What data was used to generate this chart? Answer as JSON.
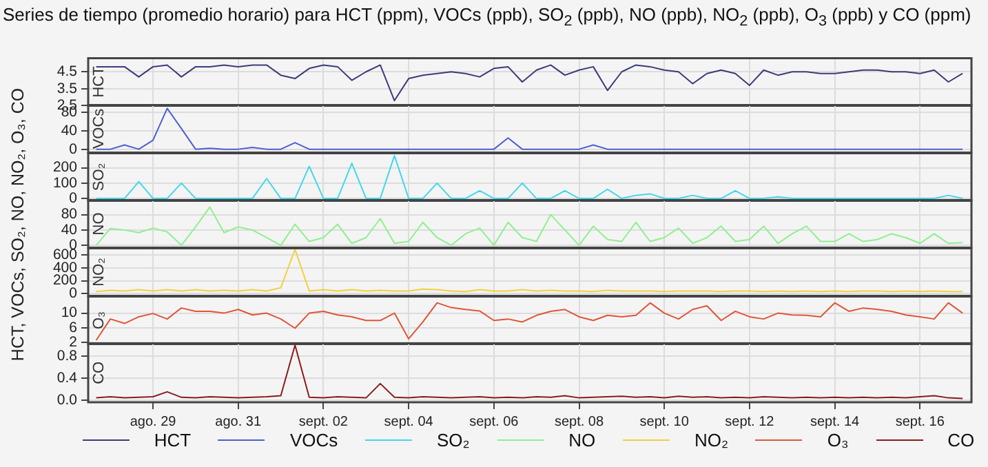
{
  "chart_data": [
    {
      "type": "line",
      "title": "Series de tiempo (promedio horario) para HCT (ppm), VOCs (ppb), SO$_{2}$ (ppb), NO (ppb), NO$_{2}$ (ppb), O$_{3}$ (ppb) y CO (ppm)",
      "ylabel": "HCT, VOCs, SO₂, NO, NO₂, O₃, CO",
      "grid": true,
      "legend": "bottom",
      "tick_labels": "y",
      "x": [
        "--08-27T16:00",
        "--08-28T00:00",
        "--08-28T08:00",
        "--08-28T16:00",
        "--08-29T00:00",
        "--08-29T08:00",
        "--08-29T16:00",
        "--08-30T00:00",
        "--08-30T08:00",
        "--08-30T16:00",
        "--08-31T00:00",
        "--08-31T08:00",
        "--08-31T16:00",
        "--09-01T00:00",
        "--09-01T08:00",
        "--09-01T16:00",
        "--09-02T00:00",
        "--09-02T08:00",
        "--09-02T16:00",
        "--09-03T00:00",
        "--09-03T08:00",
        "--09-03T16:00",
        "--09-04T00:00",
        "--09-04T08:00",
        "--09-04T16:00",
        "--09-05T00:00",
        "--09-05T08:00",
        "--09-05T16:00",
        "--09-06T00:00",
        "--09-06T08:00",
        "--09-06T16:00",
        "--09-07T00:00",
        "--09-07T08:00",
        "--09-07T16:00",
        "--09-08T00:00",
        "--09-08T08:00",
        "--09-08T16:00",
        "--09-09T00:00",
        "--09-09T08:00",
        "--09-09T16:00",
        "--09-10T00:00",
        "--09-10T08:00",
        "--09-10T16:00",
        "--09-11T00:00",
        "--09-11T08:00",
        "--09-11T16:00",
        "--09-12T00:00",
        "--09-12T08:00",
        "--09-12T16:00",
        "--09-13T00:00",
        "--09-13T08:00",
        "--09-13T16:00",
        "--09-14T00:00",
        "--09-14T08:00",
        "--09-14T16:00",
        "--09-15T00:00",
        "--09-15T08:00",
        "--09-15T16:00",
        "--09-16T00:00",
        "--09-16T08:00",
        "--09-16T16:00",
        "--09-17T00:00"
      ],
      "xlim": [
        "--08-27T11:30",
        "--09-17T05:00"
      ],
      "xticks": [
        {
          "value": "--08-29",
          "label": null
        },
        {
          "value": "--08-31",
          "label": null
        },
        {
          "value": "--09-02",
          "label": null
        },
        {
          "value": "--09-04",
          "label": null
        },
        {
          "value": "--09-06",
          "label": null
        },
        {
          "value": "--09-08",
          "label": null
        },
        {
          "value": "--09-10",
          "label": null
        },
        {
          "value": "--09-12",
          "label": null
        },
        {
          "value": "--09-14",
          "label": null
        },
        {
          "value": "--09-16",
          "label": null
        }
      ],
      "ylim": [
        2.5,
        5.3
      ],
      "yticks": [
        2.5,
        3.5,
        4.5
      ],
      "series": [
        {
          "name": "HCT",
          "color": "#3b3b7a",
          "values": [
            4.8,
            4.8,
            4.8,
            4.2,
            4.8,
            4.9,
            4.2,
            4.8,
            4.8,
            4.9,
            4.8,
            4.9,
            4.9,
            4.3,
            4.1,
            4.7,
            4.9,
            4.8,
            4.0,
            4.5,
            4.9,
            2.8,
            4.1,
            4.3,
            4.4,
            4.5,
            4.4,
            4.2,
            4.7,
            4.8,
            3.9,
            4.6,
            4.9,
            4.3,
            4.6,
            4.8,
            3.4,
            4.5,
            4.9,
            4.8,
            4.6,
            4.5,
            3.8,
            4.4,
            4.6,
            4.4,
            3.7,
            4.6,
            4.3,
            4.5,
            4.5,
            4.4,
            4.4,
            4.5,
            4.6,
            4.6,
            4.5,
            4.5,
            4.4,
            4.6,
            3.9,
            4.4
          ]
        }
      ]
    },
    {
      "type": "line",
      "grid": true,
      "legend": "bottom",
      "tick_labels": "y",
      "x": [
        "--08-27T16:00",
        "--08-28T00:00",
        "--08-28T08:00",
        "--08-28T16:00",
        "--08-29T00:00",
        "--08-29T08:00",
        "--08-29T16:00",
        "--08-30T00:00",
        "--08-30T08:00",
        "--08-30T16:00",
        "--08-31T00:00",
        "--08-31T08:00",
        "--08-31T16:00",
        "--09-01T00:00",
        "--09-01T08:00",
        "--09-01T16:00",
        "--09-02T00:00",
        "--09-02T08:00",
        "--09-02T16:00",
        "--09-03T00:00",
        "--09-03T08:00",
        "--09-03T16:00",
        "--09-04T00:00",
        "--09-04T08:00",
        "--09-04T16:00",
        "--09-05T00:00",
        "--09-05T08:00",
        "--09-05T16:00",
        "--09-06T00:00",
        "--09-06T08:00",
        "--09-06T16:00",
        "--09-07T00:00",
        "--09-07T08:00",
        "--09-07T16:00",
        "--09-08T00:00",
        "--09-08T08:00",
        "--09-08T16:00",
        "--09-09T00:00",
        "--09-09T08:00",
        "--09-09T16:00",
        "--09-10T00:00",
        "--09-10T08:00",
        "--09-10T16:00",
        "--09-11T00:00",
        "--09-11T08:00",
        "--09-11T16:00",
        "--09-12T00:00",
        "--09-12T08:00",
        "--09-12T16:00",
        "--09-13T00:00",
        "--09-13T08:00",
        "--09-13T16:00",
        "--09-14T00:00",
        "--09-14T08:00",
        "--09-14T16:00",
        "--09-15T00:00",
        "--09-15T08:00",
        "--09-15T16:00",
        "--09-16T00:00",
        "--09-16T08:00",
        "--09-16T16:00",
        "--09-17T00:00"
      ],
      "xlim": [
        "--08-27T11:30",
        "--09-17T05:00"
      ],
      "xticks": [
        {
          "value": "--08-29",
          "label": null
        },
        {
          "value": "--08-31",
          "label": null
        },
        {
          "value": "--09-02",
          "label": null
        },
        {
          "value": "--09-04",
          "label": null
        },
        {
          "value": "--09-06",
          "label": null
        },
        {
          "value": "--09-08",
          "label": null
        },
        {
          "value": "--09-10",
          "label": null
        },
        {
          "value": "--09-12",
          "label": null
        },
        {
          "value": "--09-14",
          "label": null
        },
        {
          "value": "--09-16",
          "label": null
        }
      ],
      "ylim": [
        -6,
        95
      ],
      "yticks": [
        0,
        40,
        80
      ],
      "series": [
        {
          "name": "VOCs",
          "color": "#4c5fd0",
          "values": [
            1,
            1,
            10,
            1,
            20,
            88,
            45,
            1,
            3,
            1,
            1,
            5,
            1,
            1,
            15,
            1,
            1,
            1,
            1,
            1,
            1,
            1,
            1,
            1,
            1,
            1,
            1,
            1,
            1,
            25,
            1,
            1,
            1,
            1,
            1,
            10,
            1,
            1,
            1,
            1,
            1,
            1,
            1,
            1,
            1,
            1,
            1,
            1,
            1,
            1,
            1,
            1,
            1,
            1,
            1,
            1,
            1,
            1,
            1,
            1,
            1,
            1
          ]
        }
      ]
    },
    {
      "type": "line",
      "grid": true,
      "legend": "bottom",
      "tick_labels": "y",
      "x": [
        "--08-27T16:00",
        "--08-28T00:00",
        "--08-28T08:00",
        "--08-28T16:00",
        "--08-29T00:00",
        "--08-29T08:00",
        "--08-29T16:00",
        "--08-30T00:00",
        "--08-30T08:00",
        "--08-30T16:00",
        "--08-31T00:00",
        "--08-31T08:00",
        "--08-31T16:00",
        "--09-01T00:00",
        "--09-01T08:00",
        "--09-01T16:00",
        "--09-02T00:00",
        "--09-02T08:00",
        "--09-02T16:00",
        "--09-03T00:00",
        "--09-03T08:00",
        "--09-03T16:00",
        "--09-04T00:00",
        "--09-04T08:00",
        "--09-04T16:00",
        "--09-05T00:00",
        "--09-05T08:00",
        "--09-05T16:00",
        "--09-06T00:00",
        "--09-06T08:00",
        "--09-06T16:00",
        "--09-07T00:00",
        "--09-07T08:00",
        "--09-07T16:00",
        "--09-08T00:00",
        "--09-08T08:00",
        "--09-08T16:00",
        "--09-09T00:00",
        "--09-09T08:00",
        "--09-09T16:00",
        "--09-10T00:00",
        "--09-10T08:00",
        "--09-10T16:00",
        "--09-11T00:00",
        "--09-11T08:00",
        "--09-11T16:00",
        "--09-12T00:00",
        "--09-12T08:00",
        "--09-12T16:00",
        "--09-13T00:00",
        "--09-13T08:00",
        "--09-13T16:00",
        "--09-14T00:00",
        "--09-14T08:00",
        "--09-14T16:00",
        "--09-15T00:00",
        "--09-15T08:00",
        "--09-15T16:00",
        "--09-16T00:00",
        "--09-16T08:00",
        "--09-16T16:00",
        "--09-17T00:00"
      ],
      "xlim": [
        "--08-27T11:30",
        "--09-17T05:00"
      ],
      "xticks": [
        {
          "value": "--08-29",
          "label": null
        },
        {
          "value": "--08-31",
          "label": null
        },
        {
          "value": "--09-02",
          "label": null
        },
        {
          "value": "--09-04",
          "label": null
        },
        {
          "value": "--09-06",
          "label": null
        },
        {
          "value": "--09-08",
          "label": null
        },
        {
          "value": "--09-10",
          "label": null
        },
        {
          "value": "--09-12",
          "label": null
        },
        {
          "value": "--09-14",
          "label": null
        },
        {
          "value": "--09-16",
          "label": null
        }
      ],
      "ylim": [
        -15,
        295
      ],
      "yticks": [
        0,
        100,
        200
      ],
      "series": [
        {
          "name": "SO₂",
          "color": "#40d8ec",
          "values": [
            0,
            0,
            0,
            110,
            0,
            0,
            100,
            0,
            0,
            0,
            0,
            0,
            130,
            0,
            0,
            210,
            0,
            0,
            230,
            0,
            0,
            280,
            0,
            0,
            100,
            0,
            0,
            50,
            0,
            0,
            100,
            0,
            0,
            50,
            0,
            0,
            60,
            0,
            20,
            30,
            0,
            0,
            20,
            0,
            0,
            50,
            0,
            0,
            10,
            0,
            0,
            0,
            0,
            0,
            0,
            0,
            0,
            0,
            0,
            0,
            20,
            0
          ]
        }
      ]
    },
    {
      "type": "line",
      "grid": true,
      "legend": "bottom",
      "tick_labels": "y",
      "x": [
        "--08-27T16:00",
        "--08-28T00:00",
        "--08-28T08:00",
        "--08-28T16:00",
        "--08-29T00:00",
        "--08-29T08:00",
        "--08-29T16:00",
        "--08-30T00:00",
        "--08-30T08:00",
        "--08-30T16:00",
        "--08-31T00:00",
        "--08-31T08:00",
        "--08-31T16:00",
        "--09-01T00:00",
        "--09-01T08:00",
        "--09-01T16:00",
        "--09-02T00:00",
        "--09-02T08:00",
        "--09-02T16:00",
        "--09-03T00:00",
        "--09-03T08:00",
        "--09-03T16:00",
        "--09-04T00:00",
        "--09-04T08:00",
        "--09-04T16:00",
        "--09-05T00:00",
        "--09-05T08:00",
        "--09-05T16:00",
        "--09-06T00:00",
        "--09-06T08:00",
        "--09-06T16:00",
        "--09-07T00:00",
        "--09-07T08:00",
        "--09-07T16:00",
        "--09-08T00:00",
        "--09-08T08:00",
        "--09-08T16:00",
        "--09-09T00:00",
        "--09-09T08:00",
        "--09-09T16:00",
        "--09-10T00:00",
        "--09-10T08:00",
        "--09-10T16:00",
        "--09-11T00:00",
        "--09-11T08:00",
        "--09-11T16:00",
        "--09-12T00:00",
        "--09-12T08:00",
        "--09-12T16:00",
        "--09-13T00:00",
        "--09-13T08:00",
        "--09-13T16:00",
        "--09-14T00:00",
        "--09-14T08:00",
        "--09-14T16:00",
        "--09-15T00:00",
        "--09-15T08:00",
        "--09-15T16:00",
        "--09-16T00:00",
        "--09-16T08:00",
        "--09-16T16:00",
        "--09-17T00:00"
      ],
      "xlim": [
        "--08-27T11:30",
        "--09-17T05:00"
      ],
      "xticks": [
        {
          "value": "--08-29",
          "label": null
        },
        {
          "value": "--08-31",
          "label": null
        },
        {
          "value": "--09-02",
          "label": null
        },
        {
          "value": "--09-04",
          "label": null
        },
        {
          "value": "--09-06",
          "label": null
        },
        {
          "value": "--09-08",
          "label": null
        },
        {
          "value": "--09-10",
          "label": null
        },
        {
          "value": "--09-12",
          "label": null
        },
        {
          "value": "--09-14",
          "label": null
        },
        {
          "value": "--09-16",
          "label": null
        }
      ],
      "ylim": [
        -6,
        118
      ],
      "yticks": [
        0,
        40,
        80
      ],
      "series": [
        {
          "name": "NO",
          "color": "#8ef08e",
          "values": [
            0,
            44,
            40,
            33,
            45,
            35,
            0,
            48,
            100,
            33,
            48,
            40,
            20,
            0,
            55,
            10,
            20,
            55,
            5,
            20,
            70,
            5,
            10,
            60,
            20,
            0,
            30,
            45,
            0,
            60,
            20,
            10,
            80,
            40,
            0,
            50,
            15,
            10,
            60,
            10,
            20,
            45,
            5,
            20,
            50,
            10,
            15,
            50,
            5,
            30,
            50,
            10,
            10,
            30,
            10,
            15,
            30,
            20,
            5,
            30,
            5,
            7
          ]
        }
      ]
    },
    {
      "type": "line",
      "grid": true,
      "legend": "bottom",
      "tick_labels": "y",
      "x": [
        "--08-27T16:00",
        "--08-28T00:00",
        "--08-28T08:00",
        "--08-28T16:00",
        "--08-29T00:00",
        "--08-29T08:00",
        "--08-29T16:00",
        "--08-30T00:00",
        "--08-30T08:00",
        "--08-30T16:00",
        "--08-31T00:00",
        "--08-31T08:00",
        "--08-31T16:00",
        "--09-01T00:00",
        "--09-01T08:00",
        "--09-01T16:00",
        "--09-02T00:00",
        "--09-02T08:00",
        "--09-02T16:00",
        "--09-03T00:00",
        "--09-03T08:00",
        "--09-03T16:00",
        "--09-04T00:00",
        "--09-04T08:00",
        "--09-04T16:00",
        "--09-05T00:00",
        "--09-05T08:00",
        "--09-05T16:00",
        "--09-06T00:00",
        "--09-06T08:00",
        "--09-06T16:00",
        "--09-07T00:00",
        "--09-07T08:00",
        "--09-07T16:00",
        "--09-08T00:00",
        "--09-08T08:00",
        "--09-08T16:00",
        "--09-09T00:00",
        "--09-09T08:00",
        "--09-09T16:00",
        "--09-10T00:00",
        "--09-10T08:00",
        "--09-10T16:00",
        "--09-11T00:00",
        "--09-11T08:00",
        "--09-11T16:00",
        "--09-12T00:00",
        "--09-12T08:00",
        "--09-12T16:00",
        "--09-13T00:00",
        "--09-13T08:00",
        "--09-13T16:00",
        "--09-14T00:00",
        "--09-14T08:00",
        "--09-14T16:00",
        "--09-15T00:00",
        "--09-15T08:00",
        "--09-15T16:00",
        "--09-16T00:00",
        "--09-16T08:00",
        "--09-16T16:00",
        "--09-17T00:00"
      ],
      "xlim": [
        "--08-27T11:30",
        "--09-17T05:00"
      ],
      "xticks": [
        {
          "value": "--08-29",
          "label": null
        },
        {
          "value": "--08-31",
          "label": null
        },
        {
          "value": "--09-02",
          "label": null
        },
        {
          "value": "--09-04",
          "label": null
        },
        {
          "value": "--09-06",
          "label": null
        },
        {
          "value": "--09-08",
          "label": null
        },
        {
          "value": "--09-10",
          "label": null
        },
        {
          "value": "--09-12",
          "label": null
        },
        {
          "value": "--09-14",
          "label": null
        },
        {
          "value": "--09-16",
          "label": null
        }
      ],
      "ylim": [
        -35,
        705
      ],
      "yticks": [
        0,
        200,
        400,
        600
      ],
      "series": [
        {
          "name": "NO₂",
          "color": "#f2d03c",
          "values": [
            30,
            50,
            40,
            60,
            40,
            60,
            40,
            60,
            40,
            50,
            40,
            60,
            40,
            90,
            690,
            40,
            60,
            40,
            60,
            40,
            50,
            40,
            40,
            70,
            60,
            40,
            30,
            60,
            40,
            40,
            60,
            40,
            50,
            40,
            40,
            30,
            50,
            40,
            40,
            40,
            30,
            40,
            40,
            40,
            30,
            40,
            40,
            30,
            40,
            30,
            40,
            30,
            40,
            30,
            40,
            40,
            30,
            40,
            30,
            40,
            30,
            30
          ]
        }
      ]
    },
    {
      "type": "line",
      "grid": true,
      "legend": "bottom",
      "tick_labels": "y",
      "x": [
        "--08-27T16:00",
        "--08-28T00:00",
        "--08-28T08:00",
        "--08-28T16:00",
        "--08-29T00:00",
        "--08-29T08:00",
        "--08-29T16:00",
        "--08-30T00:00",
        "--08-30T08:00",
        "--08-30T16:00",
        "--08-31T00:00",
        "--08-31T08:00",
        "--08-31T16:00",
        "--09-01T00:00",
        "--09-01T08:00",
        "--09-01T16:00",
        "--09-02T00:00",
        "--09-02T08:00",
        "--09-02T16:00",
        "--09-03T00:00",
        "--09-03T08:00",
        "--09-03T16:00",
        "--09-04T00:00",
        "--09-04T08:00",
        "--09-04T16:00",
        "--09-05T00:00",
        "--09-05T08:00",
        "--09-05T16:00",
        "--09-06T00:00",
        "--09-06T08:00",
        "--09-06T16:00",
        "--09-07T00:00",
        "--09-07T08:00",
        "--09-07T16:00",
        "--09-08T00:00",
        "--09-08T08:00",
        "--09-08T16:00",
        "--09-09T00:00",
        "--09-09T08:00",
        "--09-09T16:00",
        "--09-10T00:00",
        "--09-10T08:00",
        "--09-10T16:00",
        "--09-11T00:00",
        "--09-11T08:00",
        "--09-11T16:00",
        "--09-12T00:00",
        "--09-12T08:00",
        "--09-12T16:00",
        "--09-13T00:00",
        "--09-13T08:00",
        "--09-13T16:00",
        "--09-14T00:00",
        "--09-14T08:00",
        "--09-14T16:00",
        "--09-15T00:00",
        "--09-15T08:00",
        "--09-15T16:00",
        "--09-16T00:00",
        "--09-16T08:00",
        "--09-16T16:00",
        "--09-17T00:00"
      ],
      "xlim": [
        "--08-27T11:30",
        "--09-17T05:00"
      ],
      "xticks": [
        {
          "value": "--08-29",
          "label": null
        },
        {
          "value": "--08-31",
          "label": null
        },
        {
          "value": "--09-02",
          "label": null
        },
        {
          "value": "--09-04",
          "label": null
        },
        {
          "value": "--09-06",
          "label": null
        },
        {
          "value": "--09-08",
          "label": null
        },
        {
          "value": "--09-10",
          "label": null
        },
        {
          "value": "--09-12",
          "label": null
        },
        {
          "value": "--09-14",
          "label": null
        },
        {
          "value": "--09-16",
          "label": null
        }
      ],
      "ylim": [
        1.6,
        14.5
      ],
      "yticks": [
        2,
        6,
        10
      ],
      "series": [
        {
          "name": "O₃",
          "color": "#e05535",
          "values": [
            2.6,
            8.4,
            7.2,
            9,
            9.9,
            8.4,
            11.4,
            10.5,
            10.5,
            10,
            11,
            9.5,
            10,
            8.4,
            5.9,
            10,
            10.5,
            9.5,
            9,
            8,
            8,
            10,
            3,
            7.6,
            12.8,
            11.5,
            11,
            10.6,
            8,
            8.4,
            7.6,
            9.4,
            10.5,
            11,
            9,
            8,
            9.4,
            9,
            9.4,
            12.8,
            10,
            8.4,
            11,
            12,
            8,
            10.5,
            9,
            8.4,
            10,
            9.5,
            9.4,
            9,
            12.8,
            10.5,
            11.4,
            11,
            10.5,
            9.5,
            9,
            8.4,
            12.8,
            10
          ]
        }
      ]
    },
    {
      "type": "line",
      "grid": true,
      "legend": "bottom",
      "x": [
        "--08-27T16:00",
        "--08-28T00:00",
        "--08-28T08:00",
        "--08-28T16:00",
        "--08-29T00:00",
        "--08-29T08:00",
        "--08-29T16:00",
        "--08-30T00:00",
        "--08-30T08:00",
        "--08-30T16:00",
        "--08-31T00:00",
        "--08-31T08:00",
        "--08-31T16:00",
        "--09-01T00:00",
        "--09-01T08:00",
        "--09-01T16:00",
        "--09-02T00:00",
        "--09-02T08:00",
        "--09-02T16:00",
        "--09-03T00:00",
        "--09-03T08:00",
        "--09-03T16:00",
        "--09-04T00:00",
        "--09-04T08:00",
        "--09-04T16:00",
        "--09-05T00:00",
        "--09-05T08:00",
        "--09-05T16:00",
        "--09-06T00:00",
        "--09-06T08:00",
        "--09-06T16:00",
        "--09-07T00:00",
        "--09-07T08:00",
        "--09-07T16:00",
        "--09-08T00:00",
        "--09-08T08:00",
        "--09-08T16:00",
        "--09-09T00:00",
        "--09-09T08:00",
        "--09-09T16:00",
        "--09-10T00:00",
        "--09-10T08:00",
        "--09-10T16:00",
        "--09-11T00:00",
        "--09-11T08:00",
        "--09-11T16:00",
        "--09-12T00:00",
        "--09-12T08:00",
        "--09-12T16:00",
        "--09-13T00:00",
        "--09-13T08:00",
        "--09-13T16:00",
        "--09-14T00:00",
        "--09-14T08:00",
        "--09-14T16:00",
        "--09-15T00:00",
        "--09-15T08:00",
        "--09-15T16:00",
        "--09-16T00:00",
        "--09-16T08:00",
        "--09-16T16:00",
        "--09-17T00:00"
      ],
      "xlim": [
        "--08-27T11:30",
        "--09-17T05:00"
      ],
      "xticks": [
        {
          "value": "--08-29",
          "label": "ago. 29"
        },
        {
          "value": "--08-31",
          "label": "ago. 31"
        },
        {
          "value": "--09-02",
          "label": "sept. 02"
        },
        {
          "value": "--09-04",
          "label": "sept. 04"
        },
        {
          "value": "--09-06",
          "label": "sept. 06"
        },
        {
          "value": "--09-08",
          "label": "sept. 08"
        },
        {
          "value": "--09-10",
          "label": "sept. 10"
        },
        {
          "value": "--09-12",
          "label": "sept. 12"
        },
        {
          "value": "--09-14",
          "label": "sept. 14"
        },
        {
          "value": "--09-16",
          "label": "sept. 16"
        }
      ],
      "ylim": [
        -0.04,
        1.03
      ],
      "yticks": [
        {
          "value": 0,
          "label": "0.0"
        },
        0.4,
        0.8
      ],
      "series": [
        {
          "name": "CO",
          "color": "#8b1a1a",
          "values": [
            0.04,
            0.06,
            0.04,
            0.05,
            0.06,
            0.15,
            0.05,
            0.04,
            0.06,
            0.05,
            0.04,
            0.05,
            0.06,
            0.08,
            1.0,
            0.05,
            0.04,
            0.06,
            0.05,
            0.04,
            0.3,
            0.05,
            0.04,
            0.06,
            0.05,
            0.04,
            0.05,
            0.06,
            0.04,
            0.05,
            0.04,
            0.06,
            0.05,
            0.08,
            0.04,
            0.05,
            0.06,
            0.07,
            0.05,
            0.06,
            0.04,
            0.07,
            0.05,
            0.06,
            0.04,
            0.05,
            0.04,
            0.06,
            0.05,
            0.04,
            0.05,
            0.04,
            0.05,
            0.04,
            0.05,
            0.04,
            0.05,
            0.04,
            0.06,
            0.08,
            0.04,
            0.03
          ]
        }
      ]
    }
  ]
}
